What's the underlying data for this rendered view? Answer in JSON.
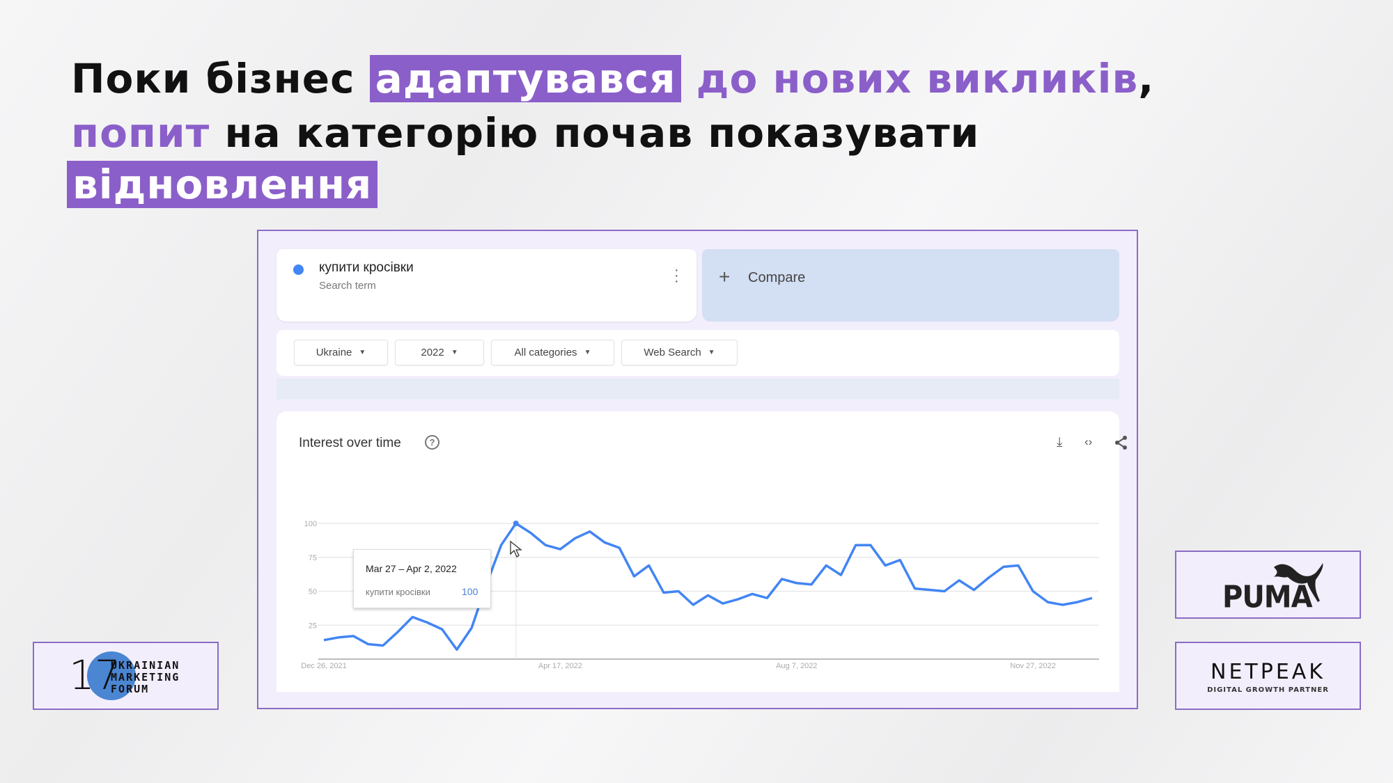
{
  "headline": {
    "line1": {
      "part1": "Поки бізнес",
      "highlight": "адаптувався",
      "part2": "до нових викликів",
      "comma": ","
    },
    "line2": {
      "accent": "попит",
      "rest": "на категорію почав показувати"
    },
    "line3": {
      "highlight": "відновлення"
    }
  },
  "colors": {
    "accent": "#8b5fc9",
    "series": "#4285f4",
    "compare_bg": "#d3dff3"
  },
  "trends": {
    "search_term": {
      "name": "купити кросівки",
      "type": "Search term",
      "menu_icon": "kebab-icon"
    },
    "compare": {
      "icon": "plus-icon",
      "label": "Compare"
    },
    "filters": [
      {
        "label": "Ukraine"
      },
      {
        "label": "2022"
      },
      {
        "label": "All categories"
      },
      {
        "label": "Web Search"
      }
    ],
    "chart_title": "Interest over time",
    "toolbar_icons": [
      "download-icon",
      "embed-code-icon",
      "share-icon"
    ],
    "tooltip": {
      "date": "Mar 27 – Apr 2, 2022",
      "term": "купити кросівки",
      "value": "100"
    }
  },
  "chart_data": {
    "type": "line",
    "title": "Interest over time",
    "x_tick_labels": [
      "Dec 26, 2021",
      "Apr 17, 2022",
      "Aug 7, 2022",
      "Nov 27, 2022"
    ],
    "y_tick_labels": [
      "100",
      "75",
      "50",
      "25"
    ],
    "ylim": [
      0,
      100
    ],
    "grid": true,
    "x_start": "Dec 26, 2021",
    "x_interval": "weekly",
    "series": [
      {
        "name": "купити кросівки",
        "values": [
          14,
          16,
          17,
          11,
          10,
          20,
          31,
          27,
          22,
          7,
          23,
          55,
          84,
          100,
          93,
          84,
          81,
          89,
          94,
          86,
          82,
          61,
          69,
          49,
          50,
          40,
          47,
          41,
          44,
          48,
          45,
          59,
          56,
          55,
          69,
          62,
          84,
          84,
          69,
          73,
          52,
          51,
          50,
          58,
          51,
          60,
          68,
          69,
          50,
          42,
          40,
          42,
          45
        ]
      }
    ],
    "highlighted_point": {
      "x": "Mar 27, 2022",
      "value": 100
    }
  },
  "logos": {
    "umf": {
      "number": "17",
      "text": [
        "UKRAINIAN",
        "MARKETING",
        "FORUM"
      ]
    },
    "puma": {
      "text": "PUMA"
    },
    "netpeak": {
      "text": "NETPEAK",
      "tagline": "DIGITAL GROWTH PARTNER"
    }
  }
}
